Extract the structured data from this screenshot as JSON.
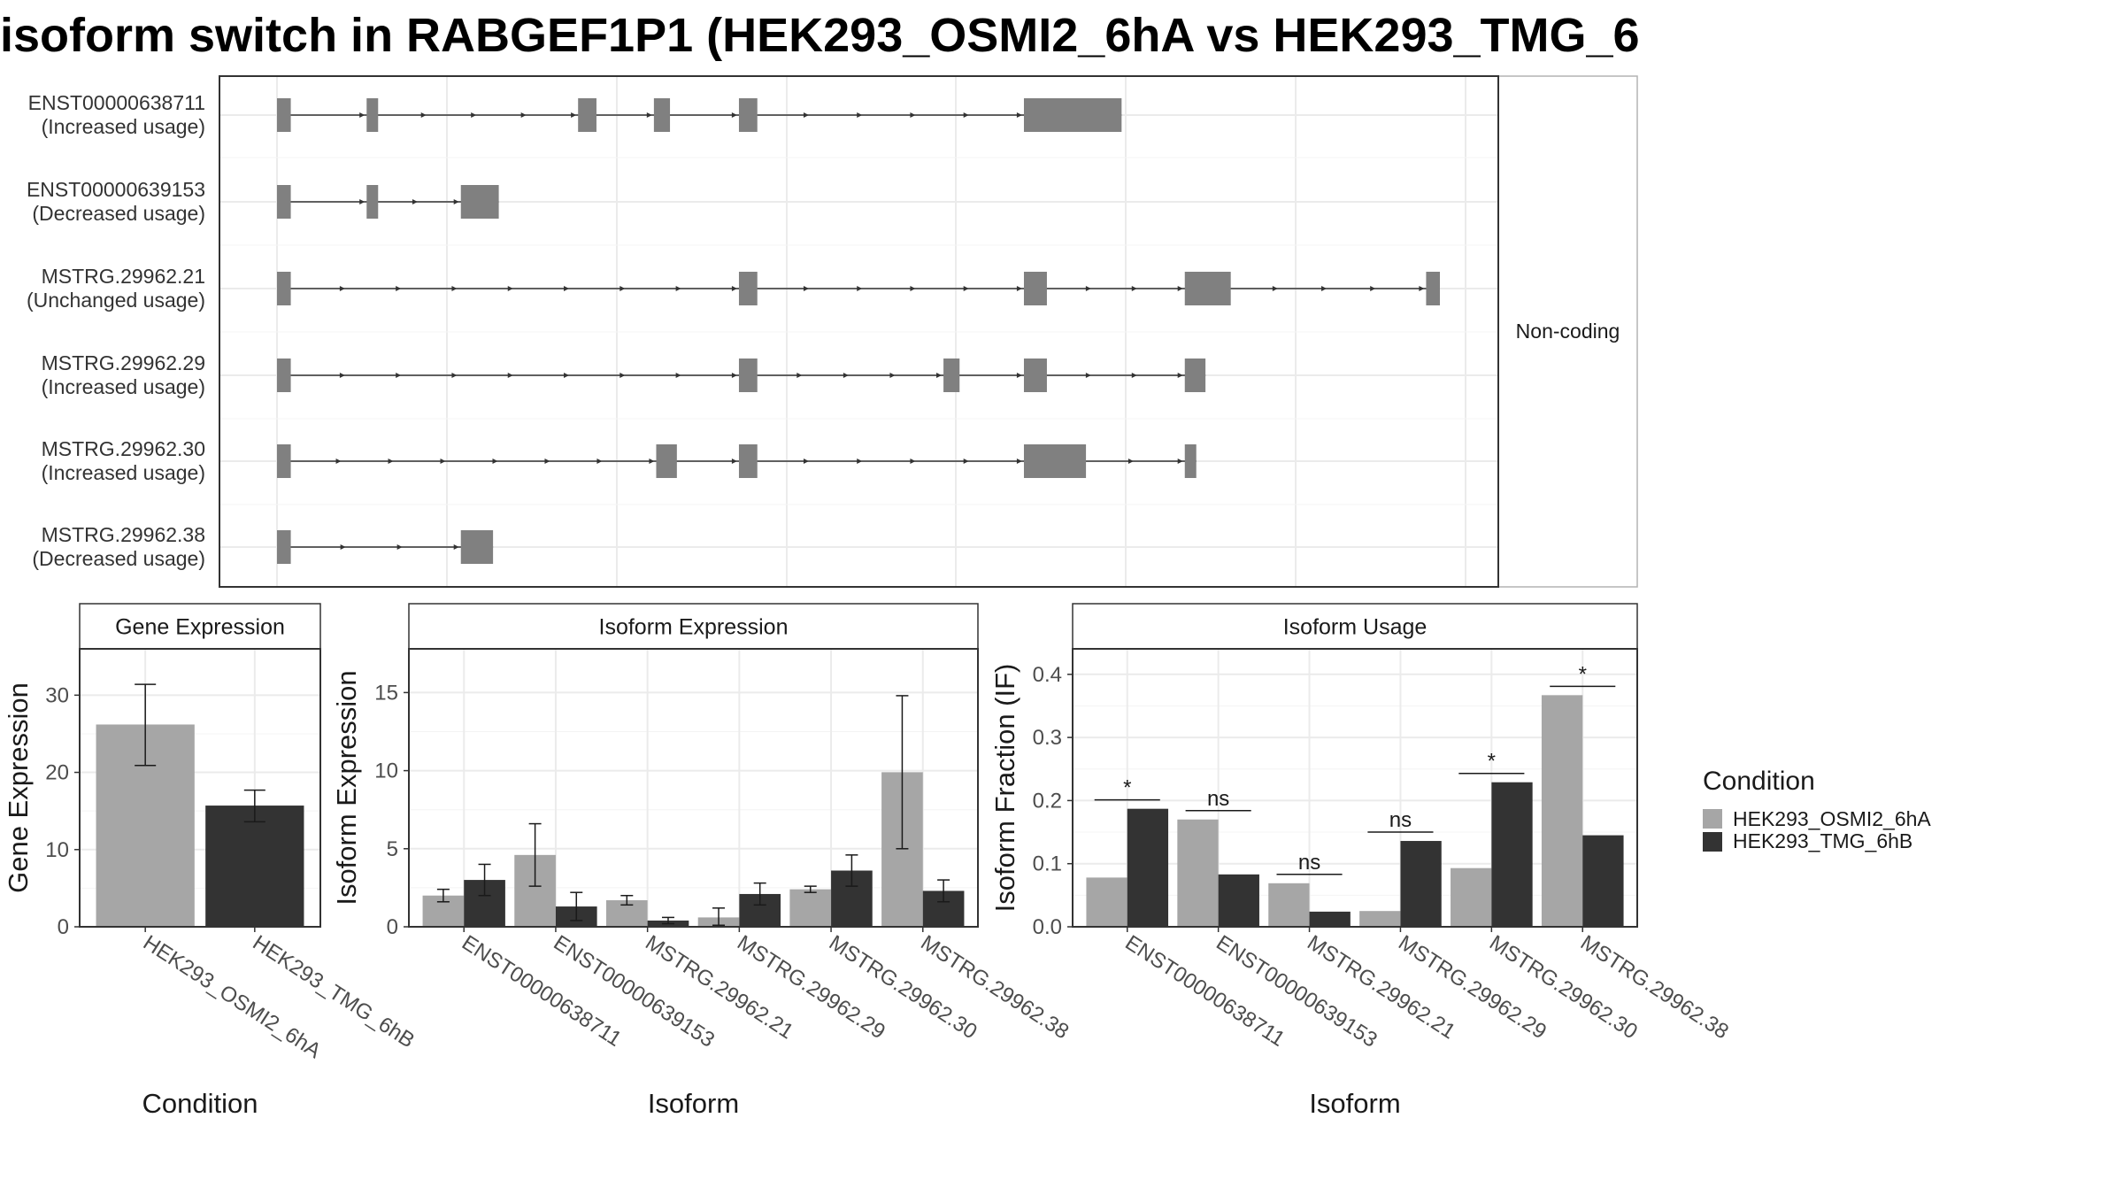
{
  "page_title": "isoform switch in RABGEF1P1 (HEK293_OSMI2_6hA vs HEK293_TMG_6",
  "colors": {
    "condition_a": "#a6a6a6",
    "condition_b": "#333333",
    "exon": "#808080",
    "grid": "#ebebeb",
    "strip": "#ffffff",
    "border": "#333333"
  },
  "transcript_panel": {
    "facet_label": "Non-coding",
    "transcripts": [
      {
        "id": "ENST00000638711",
        "usage": "(Increased usage)",
        "exons": [
          [
            0,
            12
          ],
          [
            78,
            88
          ],
          [
            262,
            278
          ],
          [
            328,
            342
          ],
          [
            402,
            418
          ],
          [
            650,
            735
          ]
        ]
      },
      {
        "id": "ENST00000639153",
        "usage": "(Decreased usage)",
        "exons": [
          [
            0,
            12
          ],
          [
            78,
            88
          ],
          [
            160,
            193
          ]
        ]
      },
      {
        "id": "MSTRG.29962.21",
        "usage": "(Unchanged usage)",
        "exons": [
          [
            0,
            12
          ],
          [
            402,
            418
          ],
          [
            650,
            670
          ],
          [
            790,
            830
          ],
          [
            1000,
            1012
          ]
        ]
      },
      {
        "id": "MSTRG.29962.29",
        "usage": "(Increased usage)",
        "exons": [
          [
            0,
            12
          ],
          [
            402,
            418
          ],
          [
            580,
            594
          ],
          [
            650,
            670
          ],
          [
            790,
            808
          ]
        ]
      },
      {
        "id": "MSTRG.29962.30",
        "usage": "(Increased usage)",
        "exons": [
          [
            0,
            12
          ],
          [
            330,
            348
          ],
          [
            402,
            418
          ],
          [
            650,
            704
          ],
          [
            790,
            800
          ]
        ]
      },
      {
        "id": "MSTRG.29962.38",
        "usage": "(Decreased usage)",
        "exons": [
          [
            0,
            12
          ],
          [
            160,
            188
          ]
        ]
      }
    ]
  },
  "legend": {
    "title": "Condition",
    "entries": [
      "HEK293_OSMI2_6hA",
      "HEK293_TMG_6hB"
    ]
  },
  "chart_data": [
    {
      "type": "bar",
      "title": "Gene Expression",
      "xlabel": "Condition",
      "ylabel": "Gene Expression",
      "ylim": [
        0,
        36
      ],
      "yticks": [
        0,
        10,
        20,
        30
      ],
      "categories": [
        "HEK293_OSMI2_6hA",
        "HEK293_TMG_6hB"
      ],
      "values": [
        26.2,
        15.7
      ],
      "errors": [
        [
          20.9,
          31.4
        ],
        [
          13.6,
          17.7
        ]
      ]
    },
    {
      "type": "bar",
      "title": "Isoform Expression",
      "xlabel": "Isoform",
      "ylabel": "Isoform Expression",
      "ylim": [
        0,
        17.8
      ],
      "yticks": [
        0,
        5,
        10,
        15
      ],
      "categories": [
        "ENST00000638711",
        "ENST00000639153",
        "MSTRG.29962.21",
        "MSTRG.29962.29",
        "MSTRG.29962.30",
        "MSTRG.29962.38"
      ],
      "series": [
        {
          "name": "HEK293_OSMI2_6hA",
          "values": [
            2.0,
            4.6,
            1.7,
            0.6,
            2.4,
            9.9
          ],
          "errors": [
            [
              1.6,
              2.4
            ],
            [
              2.6,
              6.6
            ],
            [
              1.4,
              2.0
            ],
            [
              0.1,
              1.2
            ],
            [
              2.2,
              2.6
            ],
            [
              5.0,
              14.8
            ]
          ]
        },
        {
          "name": "HEK293_TMG_6hB",
          "values": [
            3.0,
            1.3,
            0.4,
            2.1,
            3.6,
            2.3
          ],
          "errors": [
            [
              2.0,
              4.0
            ],
            [
              0.4,
              2.2
            ],
            [
              0.2,
              0.6
            ],
            [
              1.4,
              2.8
            ],
            [
              2.6,
              4.6
            ],
            [
              1.6,
              3.0
            ]
          ]
        }
      ]
    },
    {
      "type": "bar",
      "title": "Isoform Usage",
      "xlabel": "Isoform",
      "ylabel": "Isoform Fraction (IF)",
      "ylim": [
        0,
        0.4404
      ],
      "yticks": [
        0.0,
        0.1,
        0.2,
        0.3,
        0.4
      ],
      "ytick_labels": [
        "0.0",
        "0.1",
        "0.2",
        "0.3",
        "0.4"
      ],
      "categories": [
        "ENST00000638711",
        "ENST00000639153",
        "MSTRG.29962.21",
        "MSTRG.29962.29",
        "MSTRG.29962.30",
        "MSTRG.29962.38"
      ],
      "series": [
        {
          "name": "HEK293_OSMI2_6hA",
          "values": [
            0.078,
            0.17,
            0.069,
            0.025,
            0.093,
            0.367
          ]
        },
        {
          "name": "HEK293_TMG_6hB",
          "values": [
            0.187,
            0.083,
            0.024,
            0.136,
            0.229,
            0.145
          ]
        }
      ],
      "significance": [
        "*",
        "ns",
        "ns",
        "ns",
        "*",
        "*"
      ]
    }
  ]
}
